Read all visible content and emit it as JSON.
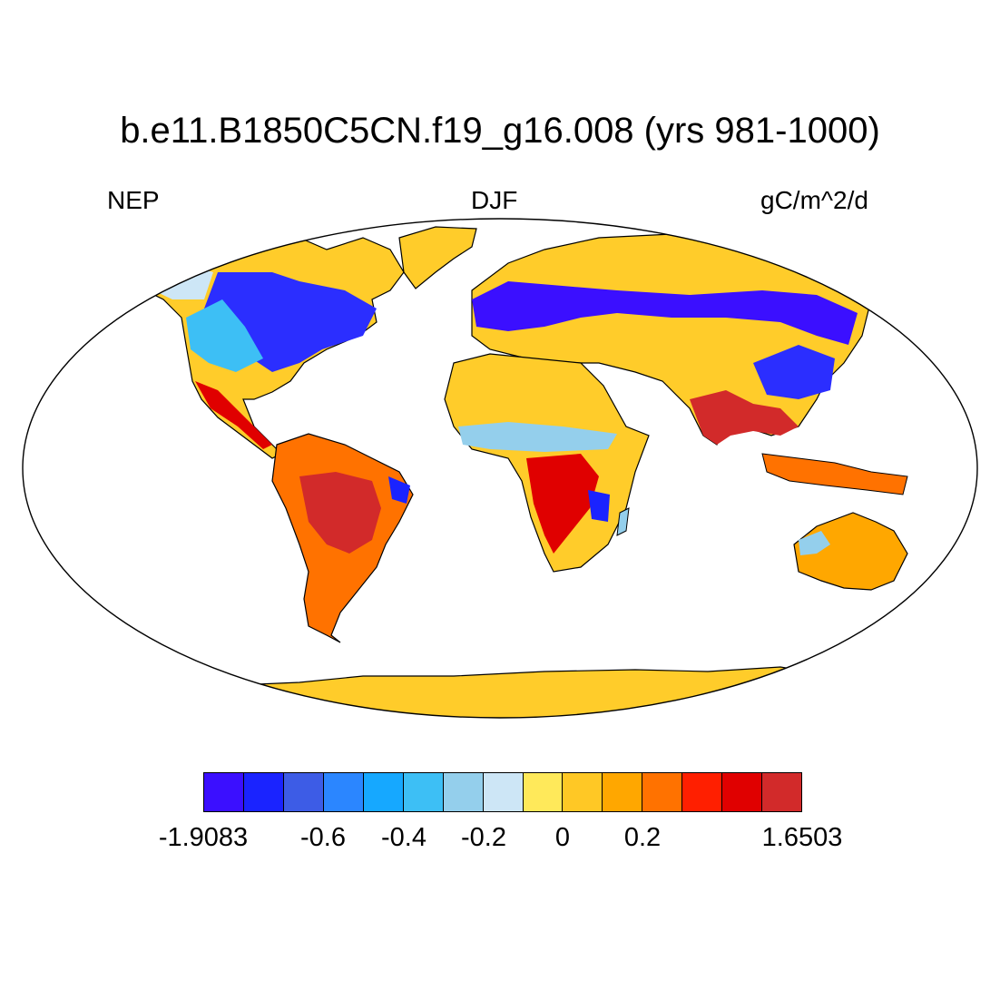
{
  "title": "b.e11.B1850C5CN.f19_g16.008 (yrs 981-1000)",
  "variable": "NEP",
  "season": "DJF",
  "units": "gC/m^2/d",
  "colorbar": {
    "colors": [
      "#3b0fff",
      "#1a23ff",
      "#3d5ce6",
      "#2b86ff",
      "#16a8ff",
      "#3dbff5",
      "#94cfec",
      "#cde6f6",
      "#ffe95a",
      "#ffc825",
      "#ffa700",
      "#ff7200",
      "#ff1f00",
      "#e00000",
      "#d22a2a"
    ],
    "labels": [
      "-1.9083",
      "-0.6",
      "-0.4",
      "-0.2",
      "0",
      "0.2",
      "1.6503"
    ]
  },
  "map": {
    "land_color": "#ffcc2a",
    "ocean_color": "#ffffff",
    "projection": "robinson"
  }
}
